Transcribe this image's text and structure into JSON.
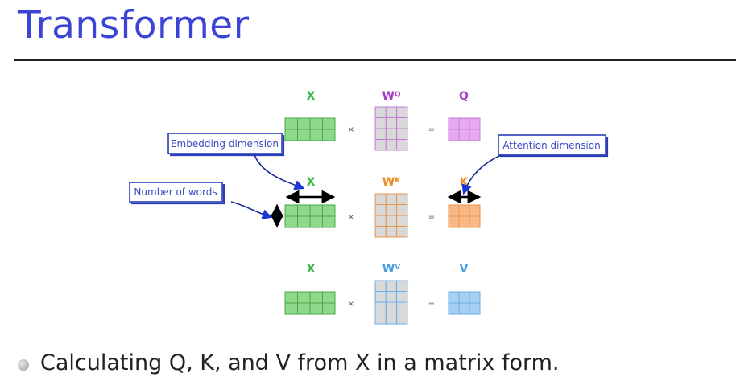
{
  "title": "Transformer",
  "bullet": "Calculating Q, K, and V from X in a matrix form.",
  "rows": [
    {
      "input_label": "X",
      "weight_base": "W",
      "weight_sup": "Q",
      "output_label": "Q",
      "times": "×",
      "equals": "=",
      "output_color": "#a43fc7",
      "output_fill": "#e7aaf0",
      "output_stroke": "#c47bd8",
      "weight_color": "#a43fc7"
    },
    {
      "input_label": "X",
      "weight_base": "W",
      "weight_sup": "K",
      "output_label": "K",
      "times": "×",
      "equals": "=",
      "output_color": "#ef8a1f",
      "output_fill": "#f7b987",
      "output_stroke": "#e8944c",
      "weight_color": "#ef8a1f"
    },
    {
      "input_label": "X",
      "weight_base": "W",
      "weight_sup": "V",
      "output_label": "V",
      "times": "×",
      "equals": "=",
      "output_color": "#4a9ee0",
      "output_fill": "#a6cff3",
      "output_stroke": "#6aaee6",
      "weight_color": "#4a9ee0"
    }
  ],
  "callouts": {
    "embedding": "Embedding dimension",
    "words": "Number of words",
    "attention": "Attention dimension"
  },
  "colors": {
    "x_label": "#3cb54a",
    "x_fill": "#8fd98a",
    "x_stroke": "#4aa84a",
    "weight_fill": "#d9d9d9",
    "callout_border": "#2a3cb8",
    "callout_arrow": "#1b2a9a"
  },
  "icons": {
    "arrow": "double-headed-arrow-icon",
    "pointer": "curved-pointer-arrow-icon"
  }
}
